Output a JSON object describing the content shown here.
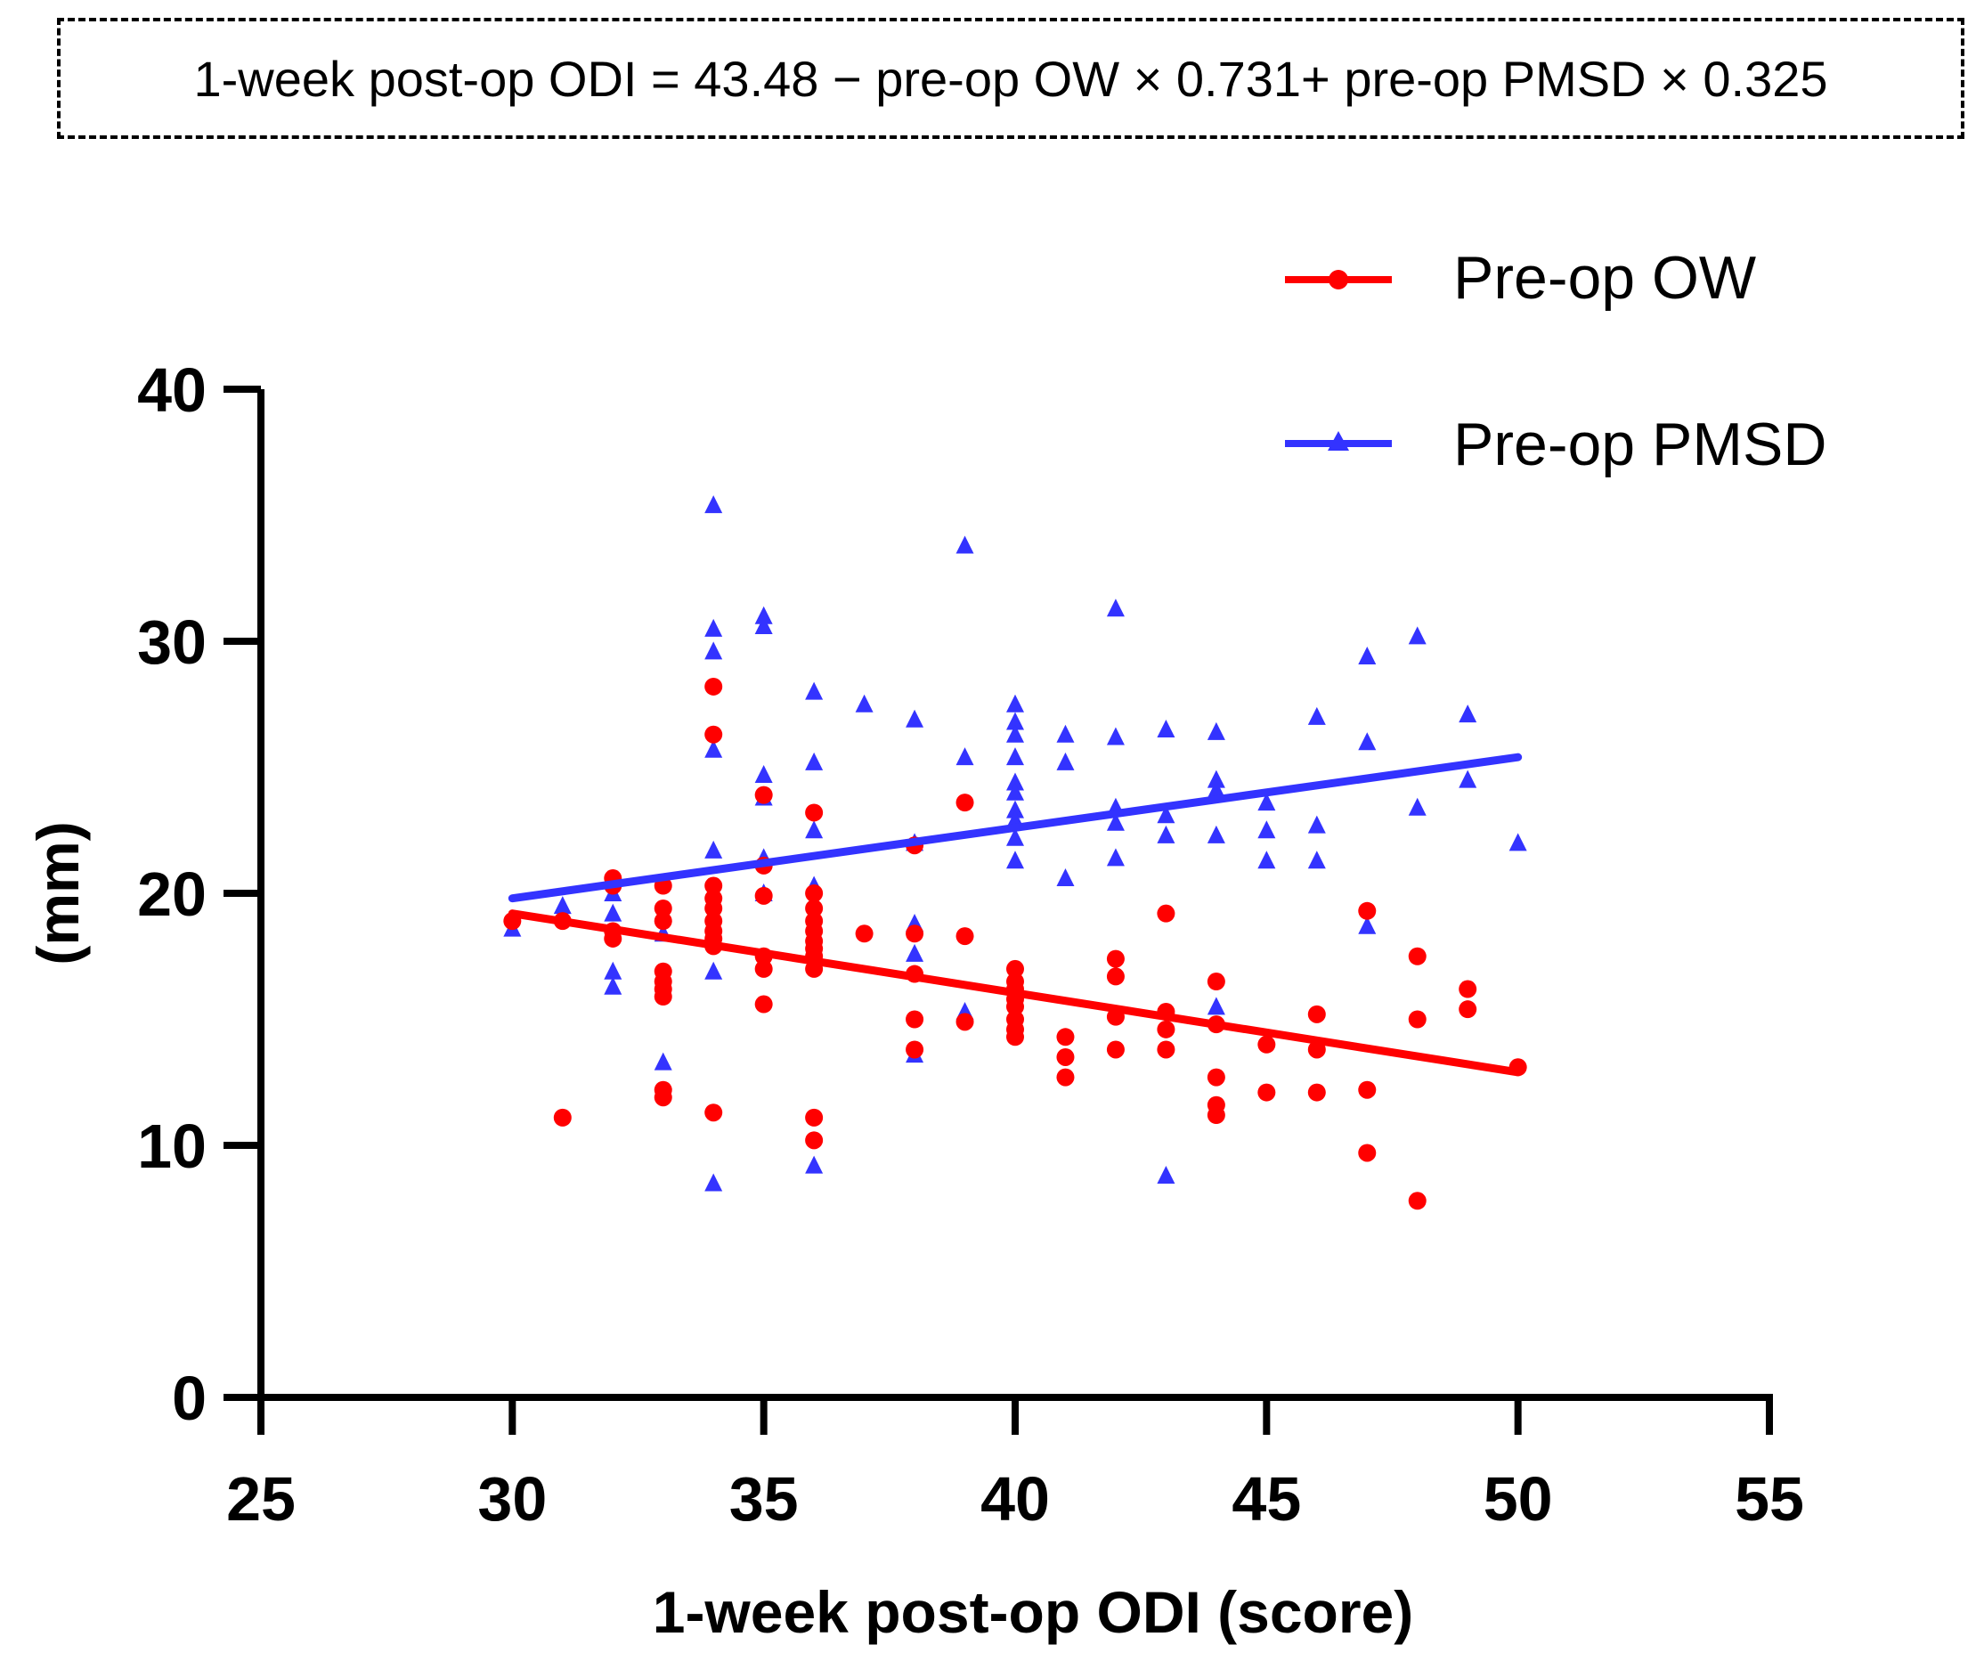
{
  "equation": "1-week post-op ODI = 43.48 − pre-op OW × 0.731+ pre-op PMSD × 0.325",
  "chart_data": {
    "type": "scatter",
    "title": "",
    "xlabel": "1-week post-op ODI (score)",
    "ylabel": "(mm)",
    "xlim": [
      25,
      55
    ],
    "ylim": [
      0,
      40
    ],
    "xticks": [
      "25",
      "30",
      "35",
      "40",
      "45",
      "50",
      "55"
    ],
    "yticks": [
      "0",
      "10",
      "20",
      "30",
      "40"
    ],
    "grid": false,
    "legend_position": "top-right",
    "series": [
      {
        "name": "Pre-op OW",
        "color": "#ff0000",
        "marker": "circle",
        "fit_line": {
          "x": [
            30,
            50
          ],
          "y": [
            19.2,
            12.9
          ]
        },
        "points": [
          [
            30,
            18.9
          ],
          [
            31,
            18.9
          ],
          [
            31,
            11.1
          ],
          [
            32,
            20.6
          ],
          [
            32,
            20.3
          ],
          [
            32,
            18.5
          ],
          [
            32,
            18.2
          ],
          [
            33,
            20.3
          ],
          [
            33,
            19.4
          ],
          [
            33,
            18.9
          ],
          [
            33,
            16.9
          ],
          [
            33,
            16.5
          ],
          [
            33,
            16.2
          ],
          [
            33,
            15.9
          ],
          [
            33,
            12.2
          ],
          [
            33,
            11.9
          ],
          [
            34,
            28.2
          ],
          [
            34,
            26.3
          ],
          [
            34,
            20.3
          ],
          [
            34,
            19.8
          ],
          [
            34,
            19.4
          ],
          [
            34,
            18.9
          ],
          [
            34,
            18.5
          ],
          [
            34,
            18.2
          ],
          [
            34,
            17.9
          ],
          [
            34,
            11.3
          ],
          [
            35,
            23.9
          ],
          [
            35,
            21.1
          ],
          [
            35,
            19.9
          ],
          [
            35,
            17.5
          ],
          [
            35,
            17.0
          ],
          [
            35,
            15.6
          ],
          [
            36,
            23.2
          ],
          [
            36,
            20.0
          ],
          [
            36,
            19.4
          ],
          [
            36,
            18.9
          ],
          [
            36,
            18.5
          ],
          [
            36,
            18.1
          ],
          [
            36,
            17.8
          ],
          [
            36,
            17.5
          ],
          [
            36,
            17.0
          ],
          [
            36,
            11.1
          ],
          [
            36,
            10.2
          ],
          [
            37,
            18.4
          ],
          [
            38,
            21.9
          ],
          [
            38,
            18.4
          ],
          [
            38,
            16.8
          ],
          [
            38,
            15.0
          ],
          [
            38,
            13.8
          ],
          [
            39,
            23.6
          ],
          [
            39,
            18.3
          ],
          [
            39,
            14.9
          ],
          [
            40,
            17.0
          ],
          [
            40,
            16.5
          ],
          [
            40,
            16.2
          ],
          [
            40,
            15.8
          ],
          [
            40,
            15.5
          ],
          [
            40,
            15.0
          ],
          [
            40,
            14.6
          ],
          [
            40,
            14.3
          ],
          [
            41,
            14.3
          ],
          [
            41,
            13.5
          ],
          [
            41,
            12.7
          ],
          [
            42,
            17.4
          ],
          [
            42,
            16.7
          ],
          [
            42,
            15.1
          ],
          [
            42,
            13.8
          ],
          [
            43,
            19.2
          ],
          [
            43,
            15.3
          ],
          [
            43,
            14.6
          ],
          [
            43,
            13.8
          ],
          [
            44,
            16.5
          ],
          [
            44,
            14.8
          ],
          [
            44,
            12.7
          ],
          [
            44,
            11.6
          ],
          [
            44,
            11.2
          ],
          [
            45,
            14.0
          ],
          [
            45,
            12.1
          ],
          [
            46,
            15.2
          ],
          [
            46,
            13.8
          ],
          [
            46,
            12.1
          ],
          [
            47,
            19.3
          ],
          [
            47,
            12.2
          ],
          [
            47,
            9.7
          ],
          [
            48,
            17.5
          ],
          [
            48,
            15.0
          ],
          [
            48,
            7.8
          ],
          [
            49,
            16.2
          ],
          [
            49,
            15.4
          ],
          [
            50,
            13.1
          ]
        ]
      },
      {
        "name": "Pre-op PMSD",
        "color": "#3333ff",
        "marker": "triangle",
        "fit_line": {
          "x": [
            30,
            50
          ],
          "y": [
            19.8,
            25.4
          ]
        },
        "points": [
          [
            30,
            18.6
          ],
          [
            31,
            19.5
          ],
          [
            32,
            20.0
          ],
          [
            32,
            19.2
          ],
          [
            32,
            16.9
          ],
          [
            32,
            16.3
          ],
          [
            33,
            19.2
          ],
          [
            33,
            18.4
          ],
          [
            33,
            13.3
          ],
          [
            34,
            35.4
          ],
          [
            34,
            30.5
          ],
          [
            34,
            29.6
          ],
          [
            34,
            25.7
          ],
          [
            34,
            21.7
          ],
          [
            34,
            16.9
          ],
          [
            34,
            8.5
          ],
          [
            35,
            31.0
          ],
          [
            35,
            30.6
          ],
          [
            35,
            24.7
          ],
          [
            35,
            23.8
          ],
          [
            35,
            21.4
          ],
          [
            35,
            20.0
          ],
          [
            36,
            28.0
          ],
          [
            36,
            25.2
          ],
          [
            36,
            22.5
          ],
          [
            36,
            20.3
          ],
          [
            36,
            9.2
          ],
          [
            37,
            27.5
          ],
          [
            38,
            26.9
          ],
          [
            38,
            22.0
          ],
          [
            38,
            18.8
          ],
          [
            38,
            17.6
          ],
          [
            38,
            13.6
          ],
          [
            39,
            33.8
          ],
          [
            39,
            25.4
          ],
          [
            39,
            15.3
          ],
          [
            40,
            27.5
          ],
          [
            40,
            26.8
          ],
          [
            40,
            26.3
          ],
          [
            40,
            25.4
          ],
          [
            40,
            24.4
          ],
          [
            40,
            24.0
          ],
          [
            40,
            23.3
          ],
          [
            40,
            22.9
          ],
          [
            40,
            22.2
          ],
          [
            40,
            21.3
          ],
          [
            41,
            26.3
          ],
          [
            41,
            25.2
          ],
          [
            41,
            20.6
          ],
          [
            42,
            31.3
          ],
          [
            42,
            26.2
          ],
          [
            42,
            23.4
          ],
          [
            42,
            22.8
          ],
          [
            42,
            21.4
          ],
          [
            43,
            26.5
          ],
          [
            43,
            23.1
          ],
          [
            43,
            22.3
          ],
          [
            43,
            8.8
          ],
          [
            44,
            26.4
          ],
          [
            44,
            24.5
          ],
          [
            44,
            24.1
          ],
          [
            44,
            22.3
          ],
          [
            44,
            15.5
          ],
          [
            45,
            23.6
          ],
          [
            45,
            22.5
          ],
          [
            45,
            21.3
          ],
          [
            46,
            27.0
          ],
          [
            46,
            22.7
          ],
          [
            46,
            21.3
          ],
          [
            47,
            29.4
          ],
          [
            47,
            26.0
          ],
          [
            47,
            18.7
          ],
          [
            48,
            30.2
          ],
          [
            48,
            23.4
          ],
          [
            49,
            27.1
          ],
          [
            49,
            24.5
          ],
          [
            50,
            22.0
          ]
        ]
      }
    ]
  }
}
